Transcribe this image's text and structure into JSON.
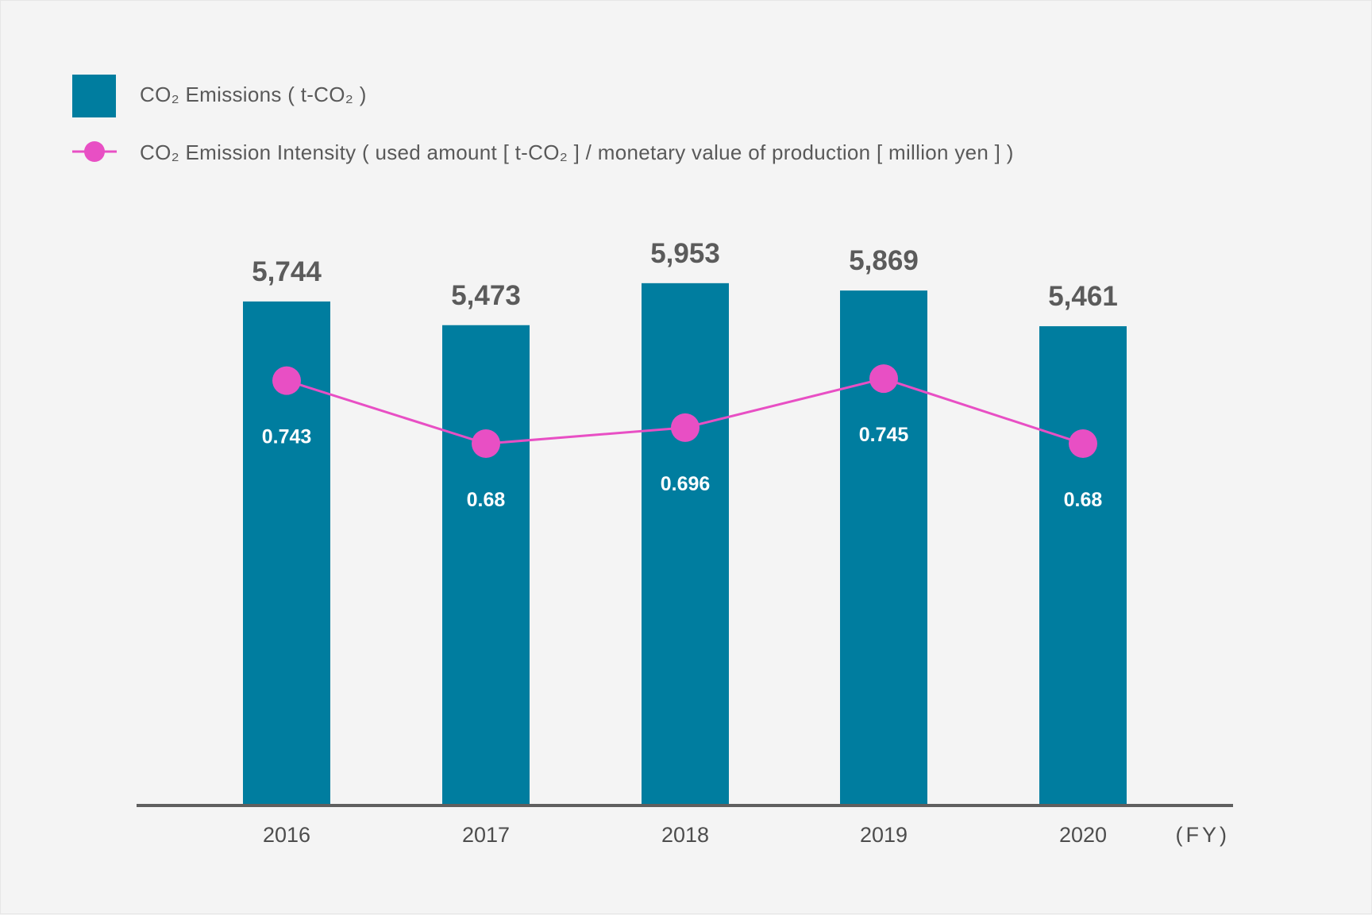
{
  "legend": {
    "bars_label": "CO₂ Emissions ( t-CO₂ )",
    "line_label": "CO₂ Emission Intensity ( used amount [ t-CO₂ ] / monetary value of production [ million yen ] )"
  },
  "colors": {
    "bar": "#007d9f",
    "line": "#e84fc4",
    "axis": "#5f5f5f",
    "background": "#f4f4f4"
  },
  "chart_data": {
    "type": "bar",
    "categories": [
      "2016",
      "2017",
      "2018",
      "2019",
      "2020"
    ],
    "x_unit": "(FY)",
    "series": [
      {
        "name": "CO₂ Emissions ( t-CO₂ )",
        "type": "bar",
        "values": [
          5744,
          5473,
          5953,
          5869,
          5461
        ],
        "value_labels": [
          "5,744",
          "5,473",
          "5,953",
          "5,869",
          "5,461"
        ]
      },
      {
        "name": "CO₂ Emission Intensity ( used amount [ t-CO₂ ] / monetary value of production [ million yen ] )",
        "type": "line",
        "values": [
          0.743,
          0.68,
          0.696,
          0.745,
          0.68
        ],
        "value_labels": [
          "0.743",
          "0.68",
          "0.696",
          "0.745",
          "0.68"
        ]
      }
    ],
    "ylim_bars": [
      0,
      6750
    ],
    "ylim_line": [
      0.32,
      0.91
    ],
    "grid": false,
    "legend_position": "top-left"
  }
}
